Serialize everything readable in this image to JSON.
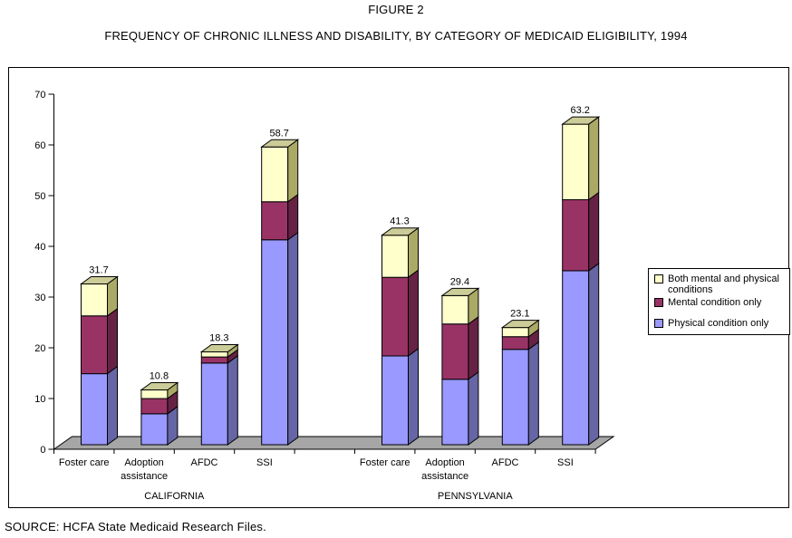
{
  "figure": {
    "title": "FIGURE 2",
    "subtitle": "FREQUENCY OF CHRONIC ILLNESS AND DISABILITY, BY CATEGORY OF MEDICAID ELIGIBILITY, 1994",
    "source_note": "SOURCE: HCFA State Medicaid Research Files."
  },
  "chart_data": {
    "type": "bar",
    "stacked": true,
    "style": "excel-3d-effect",
    "title": "FREQUENCY OF CHRONIC ILLNESS AND DISABILITY, BY CATEGORY OF MEDICAID ELIGIBILITY, 1994",
    "groups": [
      {
        "label": "CALIFORNIA",
        "slots": [
          0,
          1,
          2,
          3
        ]
      },
      {
        "label": "PENNSYLVANIA",
        "slots": [
          5,
          6,
          7,
          8
        ]
      }
    ],
    "categories": [
      {
        "label": "Foster care",
        "lines": [
          "Foster care"
        ],
        "slot": 0,
        "group": "CALIFORNIA"
      },
      {
        "label": "Adoption assistance",
        "lines": [
          "Adoption",
          "assistance"
        ],
        "slot": 1,
        "group": "CALIFORNIA"
      },
      {
        "label": "AFDC",
        "lines": [
          "AFDC"
        ],
        "slot": 2,
        "group": "CALIFORNIA"
      },
      {
        "label": "SSI",
        "lines": [
          "SSI"
        ],
        "slot": 3,
        "group": "CALIFORNIA"
      },
      {
        "label": "Foster care",
        "lines": [
          "Foster care"
        ],
        "slot": 5,
        "group": "PENNSYLVANIA"
      },
      {
        "label": "Adoption assistance",
        "lines": [
          "Adoption",
          "assistance"
        ],
        "slot": 6,
        "group": "PENNSYLVANIA"
      },
      {
        "label": "AFDC",
        "lines": [
          "AFDC"
        ],
        "slot": 7,
        "group": "PENNSYLVANIA"
      },
      {
        "label": "SSI",
        "lines": [
          "SSI"
        ],
        "slot": 8,
        "group": "PENNSYLVANIA"
      }
    ],
    "totals": [
      31.7,
      10.8,
      18.3,
      58.7,
      41.3,
      29.4,
      23.1,
      63.2
    ],
    "series": [
      {
        "name": "Physical condition only",
        "front_color": "#9999FF",
        "side_color": "#6666A6",
        "values": [
          14.0,
          6.1,
          16.1,
          40.4,
          17.5,
          12.9,
          18.8,
          34.3
        ]
      },
      {
        "name": "Mental condition only",
        "front_color": "#993366",
        "side_color": "#662244",
        "values": [
          11.4,
          3.0,
          1.2,
          7.5,
          15.5,
          10.9,
          2.5,
          14.0
        ]
      },
      {
        "name": "Both mental and physical conditions",
        "front_color": "#FFFFCC",
        "side_color": "#AAAA66",
        "top_color": "#CCCC99",
        "values": [
          6.3,
          1.7,
          1.0,
          10.8,
          8.3,
          5.6,
          1.8,
          14.9
        ]
      }
    ],
    "y_axis": {
      "min": 0,
      "max": 70,
      "tick_step": 10
    },
    "legend": {
      "position": "right",
      "entries": [
        "Both mental and physical conditions",
        "Mental condition only",
        "Physical condition only"
      ]
    },
    "colors": {
      "floor": "#A6A6A6",
      "plot_background": "#FFFFFF",
      "outline": "#000000"
    }
  }
}
